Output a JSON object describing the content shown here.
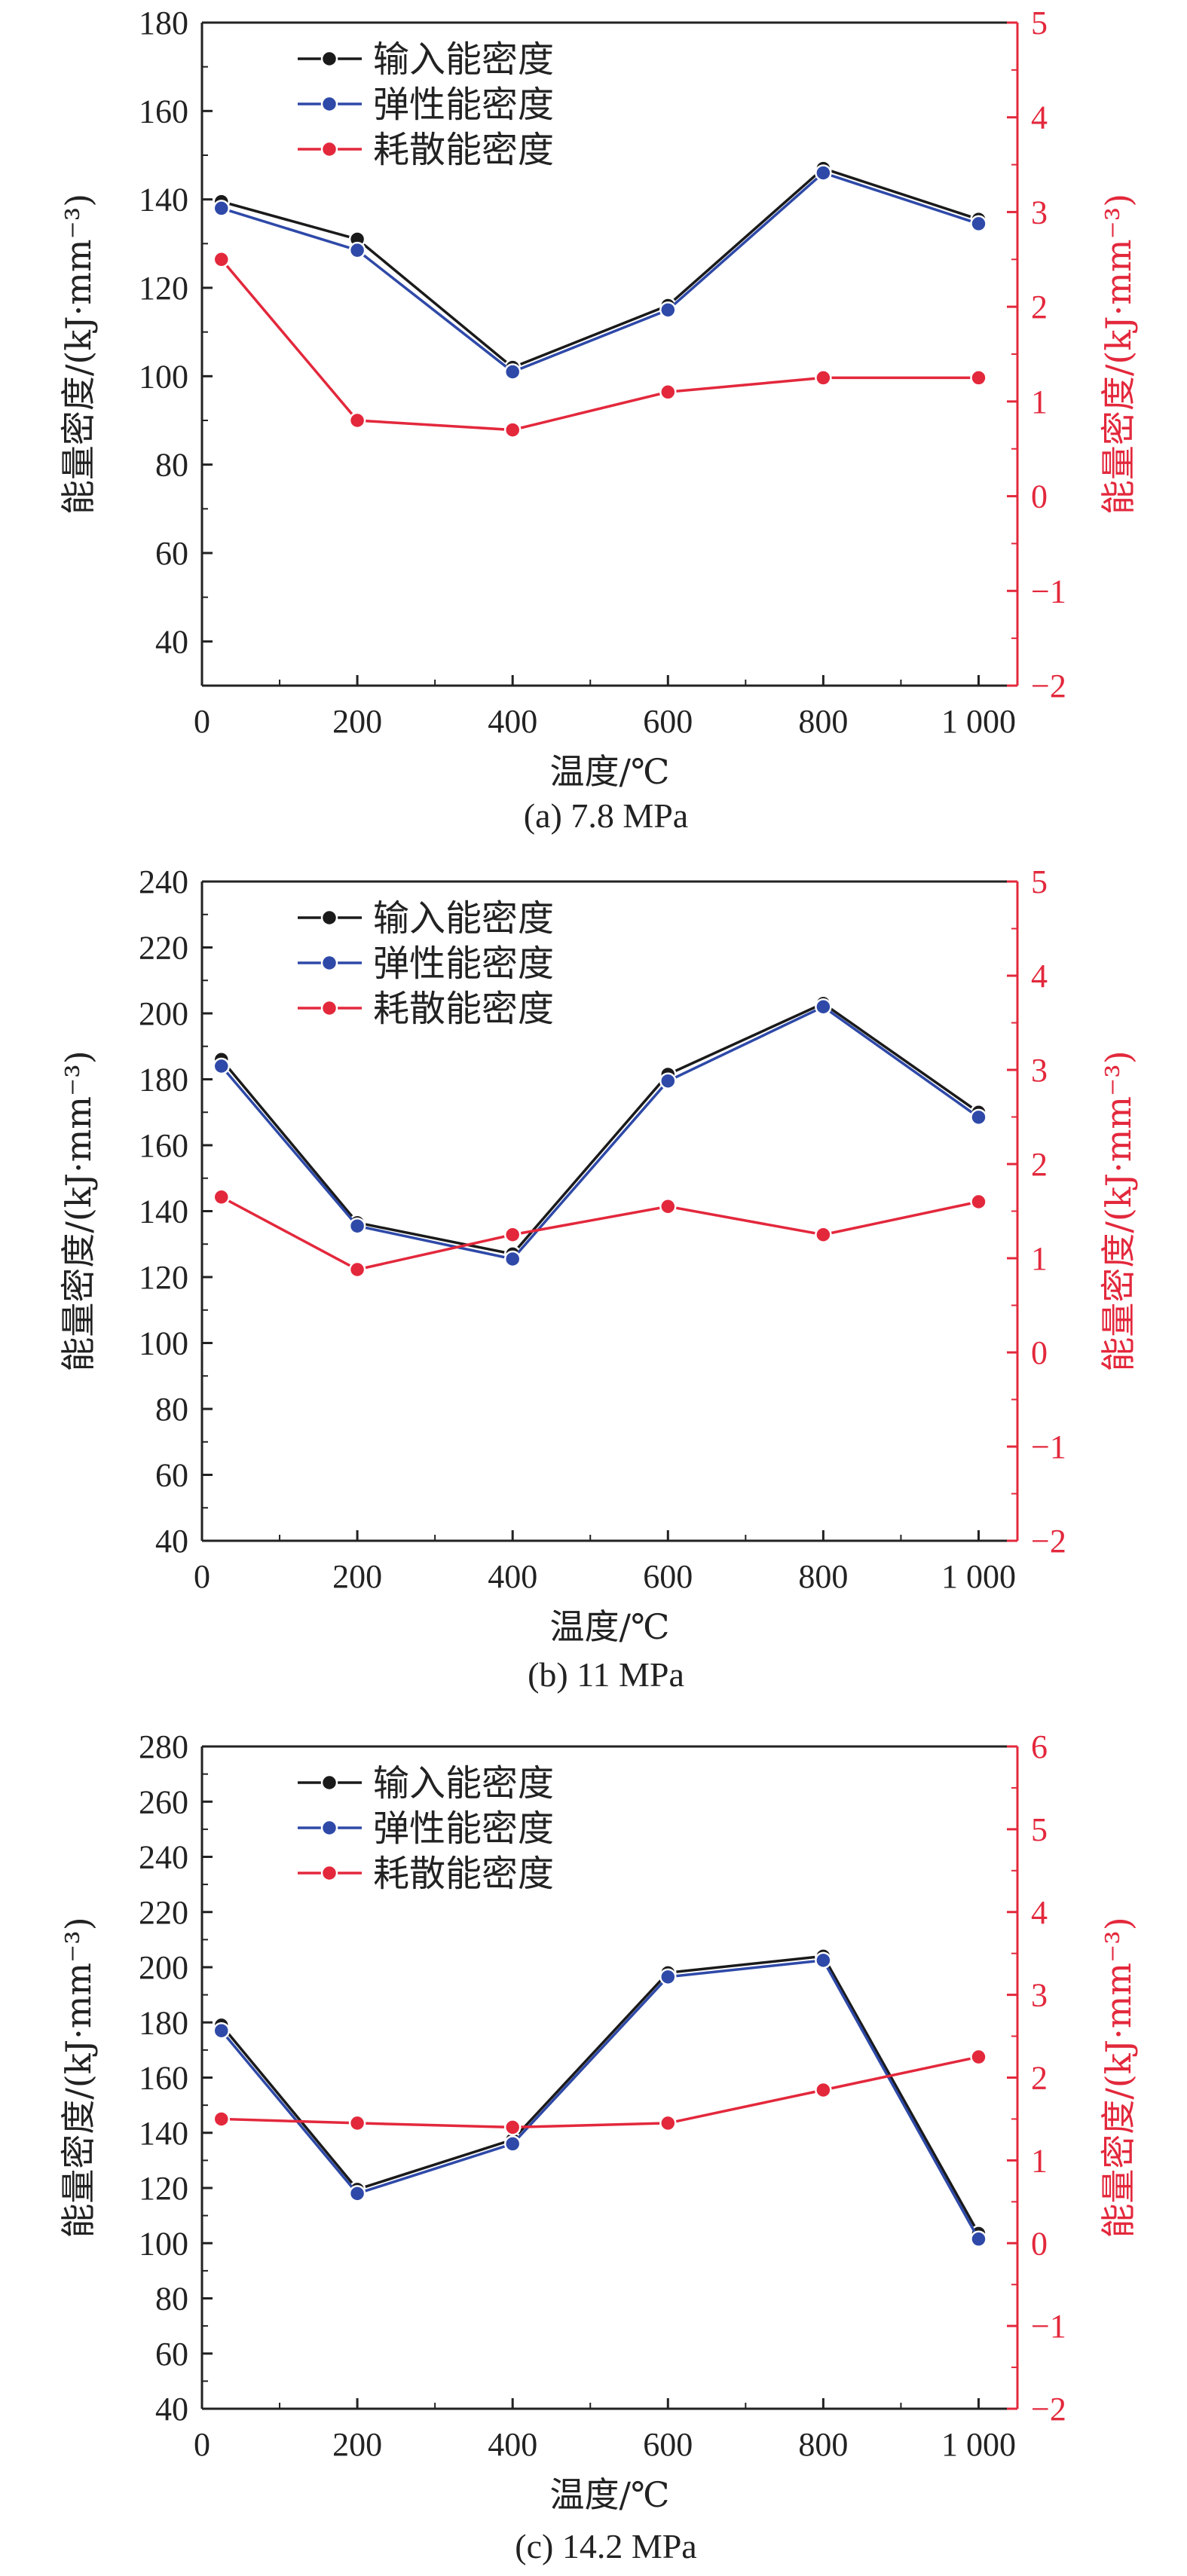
{
  "legend": [
    "输入能密度",
    "弹性能密度",
    "耗散能密度"
  ],
  "xlabel": "温度/℃",
  "ylabel_left": "能量密度/(kJ·mm⁻³)",
  "ylabel_right": "能量密度/(kJ·mm⁻³)",
  "colors": {
    "input": "#1a1a1a",
    "elastic": "#2e49a8",
    "dissipated": "#e3283c",
    "axis_right": "#e3283c"
  },
  "chart_data": [
    {
      "type": "line",
      "caption": "(a) 7.8 MPa",
      "x": [
        25,
        200,
        400,
        600,
        800,
        1000
      ],
      "xlim": [
        0,
        1050
      ],
      "xticks": [
        0,
        200,
        400,
        600,
        800,
        1000
      ],
      "xtick_labels": [
        "0",
        "200",
        "400",
        "600",
        "800",
        "1 000"
      ],
      "ylim": [
        30,
        180
      ],
      "yticks": [
        40,
        60,
        80,
        100,
        120,
        140,
        160,
        180
      ],
      "y2lim": [
        -2,
        5
      ],
      "y2ticks": [
        -2,
        -1,
        0,
        1,
        2,
        3,
        4,
        5
      ],
      "series": [
        {
          "name": "输入能密度",
          "axis": "left",
          "values": [
            139.5,
            131,
            102,
            116,
            147,
            135.5
          ]
        },
        {
          "name": "弹性能密度",
          "axis": "left",
          "values": [
            138,
            128.5,
            101,
            115,
            146,
            134.5
          ]
        },
        {
          "name": "耗散能密度",
          "axis": "right",
          "values": [
            2.5,
            0.8,
            0.7,
            1.1,
            1.25,
            1.25
          ]
        }
      ]
    },
    {
      "type": "line",
      "caption": "(b) 11 MPa",
      "x": [
        25,
        200,
        400,
        600,
        800,
        1000
      ],
      "xlim": [
        0,
        1050
      ],
      "xticks": [
        0,
        200,
        400,
        600,
        800,
        1000
      ],
      "xtick_labels": [
        "0",
        "200",
        "400",
        "600",
        "800",
        "1 000"
      ],
      "ylim": [
        40,
        240
      ],
      "yticks": [
        40,
        60,
        80,
        100,
        120,
        140,
        160,
        180,
        200,
        220,
        240
      ],
      "y2lim": [
        -2,
        5
      ],
      "y2ticks": [
        -2,
        -1,
        0,
        1,
        2,
        3,
        4,
        5
      ],
      "series": [
        {
          "name": "输入能密度",
          "axis": "left",
          "values": [
            186,
            136.5,
            127,
            181.5,
            203,
            170
          ]
        },
        {
          "name": "弹性能密度",
          "axis": "left",
          "values": [
            184,
            135.5,
            125.5,
            179.5,
            202,
            168.5
          ]
        },
        {
          "name": "耗散能密度",
          "axis": "right",
          "values": [
            1.65,
            0.88,
            1.25,
            1.55,
            1.25,
            1.6
          ]
        }
      ]
    },
    {
      "type": "line",
      "caption": "(c) 14.2 MPa",
      "x": [
        25,
        200,
        400,
        600,
        800,
        1000
      ],
      "xlim": [
        0,
        1050
      ],
      "xticks": [
        0,
        200,
        400,
        600,
        800,
        1000
      ],
      "xtick_labels": [
        "0",
        "200",
        "400",
        "600",
        "800",
        "1 000"
      ],
      "ylim": [
        40,
        280
      ],
      "yticks": [
        40,
        60,
        80,
        100,
        120,
        140,
        160,
        180,
        200,
        220,
        240,
        260,
        280
      ],
      "y2lim": [
        -2,
        6
      ],
      "y2ticks": [
        -2,
        -1,
        0,
        1,
        2,
        3,
        4,
        5,
        6
      ],
      "series": [
        {
          "name": "输入能密度",
          "axis": "left",
          "values": [
            179,
            119.5,
            137.5,
            198,
            204,
            103.5
          ]
        },
        {
          "name": "弹性能密度",
          "axis": "left",
          "values": [
            177,
            118,
            136,
            196.5,
            202.5,
            101.5
          ]
        },
        {
          "name": "耗散能密度",
          "axis": "right",
          "values": [
            1.5,
            1.45,
            1.4,
            1.45,
            1.85,
            2.25
          ]
        }
      ]
    }
  ]
}
